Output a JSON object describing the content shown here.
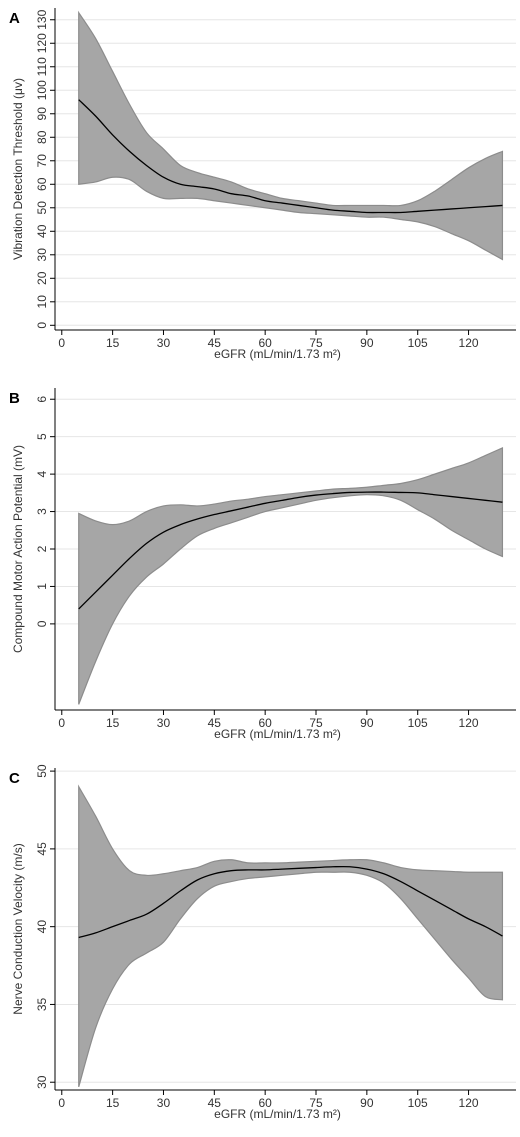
{
  "chart_data": [
    {
      "type": "area",
      "panel_label": "A",
      "xlabel": "eGFR (mL/min/1.73 m²)",
      "ylabel": "Vibration Detection Threshold (μv)",
      "xlim": [
        -2,
        134
      ],
      "ylim": [
        -2,
        135
      ],
      "x_ticks": [
        0,
        15,
        30,
        45,
        60,
        75,
        90,
        105,
        120
      ],
      "y_ticks": [
        0,
        10,
        20,
        30,
        40,
        50,
        60,
        70,
        80,
        90,
        100,
        110,
        120,
        130
      ],
      "grid": true,
      "band_color": "#a6a6a6",
      "line_color": "#000000",
      "x": [
        5,
        10,
        15,
        20,
        25,
        30,
        35,
        40,
        45,
        50,
        55,
        60,
        65,
        70,
        75,
        80,
        85,
        90,
        95,
        100,
        105,
        110,
        115,
        120,
        125,
        130
      ],
      "fit": [
        96,
        89,
        81,
        74,
        68,
        63,
        60,
        59,
        58,
        56,
        55,
        53,
        52,
        51,
        50,
        49,
        48.5,
        48,
        48,
        48,
        48.5,
        49,
        49.5,
        50,
        50.5,
        51
      ],
      "lower": [
        60,
        61,
        63,
        62,
        57,
        54,
        54,
        54,
        53,
        52,
        51,
        50,
        49,
        48,
        47.5,
        47,
        46.5,
        46,
        46,
        45,
        44,
        42,
        39,
        36,
        32,
        28
      ],
      "upper": [
        133,
        122,
        108,
        94,
        82,
        75,
        68,
        65,
        63,
        61,
        58,
        56,
        54,
        53,
        52,
        51,
        51,
        51,
        51,
        51,
        53,
        57,
        62,
        67,
        71,
        74
      ]
    },
    {
      "type": "area",
      "panel_label": "B",
      "xlabel": "eGFR (mL/min/1.73 m²)",
      "ylabel": "Compound Motor Action Potential (mV)",
      "xlim": [
        -2,
        134
      ],
      "ylim": [
        -2.3,
        6.3
      ],
      "x_ticks": [
        0,
        15,
        30,
        45,
        60,
        75,
        90,
        105,
        120
      ],
      "y_ticks": [
        0,
        1,
        2,
        3,
        4,
        5,
        6
      ],
      "grid": true,
      "band_color": "#a6a6a6",
      "line_color": "#000000",
      "x": [
        5,
        10,
        15,
        20,
        25,
        30,
        35,
        40,
        45,
        50,
        55,
        60,
        65,
        70,
        75,
        80,
        85,
        90,
        95,
        100,
        105,
        110,
        115,
        120,
        125,
        130
      ],
      "fit": [
        0.4,
        0.85,
        1.3,
        1.75,
        2.15,
        2.45,
        2.65,
        2.8,
        2.92,
        3.02,
        3.12,
        3.22,
        3.3,
        3.38,
        3.44,
        3.48,
        3.51,
        3.52,
        3.52,
        3.51,
        3.5,
        3.45,
        3.4,
        3.35,
        3.3,
        3.25
      ],
      "lower": [
        -2.15,
        -1.0,
        0.0,
        0.75,
        1.25,
        1.6,
        2.0,
        2.35,
        2.55,
        2.7,
        2.85,
        3.0,
        3.1,
        3.2,
        3.3,
        3.37,
        3.42,
        3.45,
        3.42,
        3.3,
        3.05,
        2.8,
        2.5,
        2.25,
        2.0,
        1.8
      ],
      "upper": [
        2.95,
        2.75,
        2.65,
        2.75,
        3.0,
        3.15,
        3.18,
        3.15,
        3.2,
        3.28,
        3.33,
        3.4,
        3.45,
        3.5,
        3.55,
        3.6,
        3.62,
        3.65,
        3.7,
        3.75,
        3.85,
        4.0,
        4.15,
        4.3,
        4.5,
        4.7
      ]
    },
    {
      "type": "area",
      "panel_label": "C",
      "xlabel": "eGFR (mL/min/1.73 m²)",
      "ylabel": "Nerve Conduction Velocity (m/s)",
      "xlim": [
        -2,
        134
      ],
      "ylim": [
        29.5,
        50.2
      ],
      "x_ticks": [
        0,
        15,
        30,
        45,
        60,
        75,
        90,
        105,
        120
      ],
      "y_ticks": [
        30,
        35,
        40,
        45,
        50
      ],
      "grid": true,
      "band_color": "#a6a6a6",
      "line_color": "#000000",
      "x": [
        5,
        10,
        15,
        20,
        25,
        30,
        35,
        40,
        45,
        50,
        55,
        60,
        65,
        70,
        75,
        80,
        85,
        90,
        95,
        100,
        105,
        110,
        115,
        120,
        125,
        130
      ],
      "fit": [
        39.3,
        39.6,
        40.0,
        40.4,
        40.8,
        41.5,
        42.3,
        43.0,
        43.4,
        43.6,
        43.65,
        43.65,
        43.7,
        43.75,
        43.8,
        43.85,
        43.85,
        43.7,
        43.4,
        42.9,
        42.3,
        41.7,
        41.1,
        40.5,
        40.0,
        39.4
      ],
      "lower": [
        29.7,
        33.5,
        36.0,
        37.6,
        38.3,
        39.0,
        40.5,
        41.8,
        42.6,
        42.9,
        43.1,
        43.2,
        43.3,
        43.4,
        43.5,
        43.5,
        43.5,
        43.3,
        42.8,
        41.8,
        40.5,
        39.2,
        37.9,
        36.7,
        35.5,
        35.3
      ],
      "upper": [
        49.0,
        47.1,
        45.0,
        43.6,
        43.3,
        43.4,
        43.6,
        43.8,
        44.2,
        44.3,
        44.1,
        44.1,
        44.1,
        44.15,
        44.2,
        44.25,
        44.3,
        44.3,
        44.1,
        43.8,
        43.65,
        43.6,
        43.55,
        43.5,
        43.5,
        43.5
      ]
    }
  ]
}
